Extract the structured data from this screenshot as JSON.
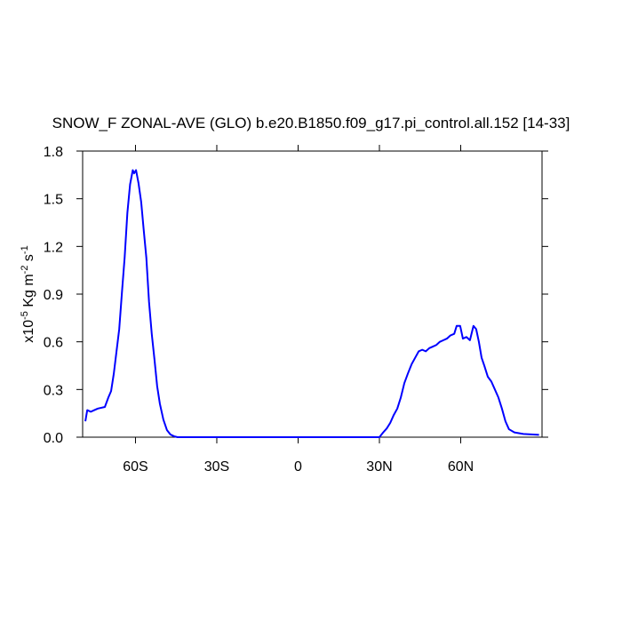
{
  "chart_data": {
    "type": "line",
    "title": "SNOW_F ZONAL-AVE (GLO) b.e20.B1850.f09_g17.pi_control.all.152 [14-33]",
    "y_label": [
      "x10",
      "-5",
      " Kg m",
      "-2",
      " s",
      "-1"
    ],
    "x": [
      -78.5,
      -77.8,
      -76.5,
      -75.2,
      -73.9,
      -71.3,
      -70,
      -69,
      -68,
      -67,
      -66,
      -65,
      -64,
      -63,
      -62,
      -61,
      -60.5,
      -59.8,
      -58.9,
      -57.9,
      -57,
      -56,
      -55,
      -54,
      -53,
      -52,
      -51,
      -49.7,
      -48.4,
      -47.1,
      -45.8,
      -44.5,
      -40,
      -30,
      -20,
      -10,
      0,
      10,
      20,
      30,
      31.4,
      32.7,
      34,
      35.3,
      36.6,
      37.9,
      39.2,
      40.5,
      41.9,
      43.2,
      44.5,
      45.8,
      47.1,
      48.4,
      49.7,
      51,
      52.3,
      53.6,
      54.9,
      56.2,
      57.6,
      58.5,
      59.8,
      60.8,
      62.1,
      63.4,
      64.7,
      65.7,
      66.7,
      67.7,
      68.7,
      70,
      71.3,
      72.6,
      73.9,
      75.2,
      76.5,
      77.8,
      79.8,
      83.1,
      88.9
    ],
    "series": [
      {
        "color": "#0000ff",
        "values": [
          0.1,
          0.17,
          0.16,
          0.17,
          0.18,
          0.19,
          0.25,
          0.29,
          0.4,
          0.54,
          0.68,
          0.91,
          1.13,
          1.41,
          1.59,
          1.68,
          1.66,
          1.68,
          1.6,
          1.48,
          1.31,
          1.13,
          0.85,
          0.65,
          0.49,
          0.32,
          0.21,
          0.11,
          0.045,
          0.017,
          0.006,
          0,
          0,
          0,
          0,
          0,
          0,
          0,
          0,
          0,
          0.03,
          0.055,
          0.09,
          0.14,
          0.18,
          0.25,
          0.34,
          0.4,
          0.46,
          0.5,
          0.54,
          0.55,
          0.54,
          0.56,
          0.57,
          0.58,
          0.6,
          0.61,
          0.62,
          0.64,
          0.65,
          0.7,
          0.7,
          0.62,
          0.63,
          0.61,
          0.7,
          0.68,
          0.6,
          0.5,
          0.45,
          0.38,
          0.35,
          0.3,
          0.25,
          0.18,
          0.1,
          0.05,
          0.03,
          0.02,
          0.015
        ]
      }
    ],
    "xlim": [
      -79.5,
      90
    ],
    "xticks": [
      {
        "value": -60,
        "label": "60S"
      },
      {
        "value": -30,
        "label": "30S"
      },
      0,
      {
        "value": 30,
        "label": "30N"
      },
      {
        "value": 60,
        "label": "60N"
      }
    ],
    "ylim": [
      0,
      1.8
    ],
    "yticks": [
      {
        "value": 0,
        "label": "0.0"
      },
      0.3,
      0.6,
      0.9,
      1.2,
      1.5,
      1.8
    ]
  }
}
